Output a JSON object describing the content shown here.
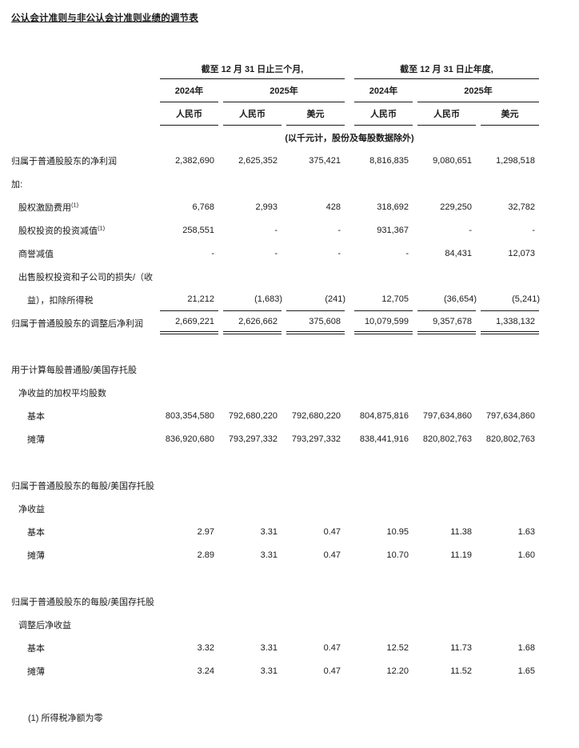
{
  "page": {
    "title": "公认会计准则与非公认会计准则业绩的调节表",
    "background": "#ffffff",
    "text_color": "#1a1a1a",
    "rule_color": "#1a1a1a"
  },
  "table": {
    "groups": [
      {
        "period": "截至 12 月 31 日止三个月,",
        "years": [
          "2024年",
          "2025年"
        ]
      },
      {
        "period": "截至 12 月 31 日止年度,",
        "years": [
          "2024年",
          "2025年"
        ]
      }
    ],
    "currencies": [
      "人民币",
      "人民币",
      "美元",
      "人民币",
      "人民币",
      "美元"
    ],
    "unit_note": "(以千元计，股份及每股数据除外)",
    "rows": [
      {
        "label": "归属于普通股股东的净利润",
        "indent": 0,
        "values": [
          "2,382,690",
          "2,625,352",
          "375,421",
          "8,816,835",
          "9,080,651",
          "1,298,518"
        ]
      },
      {
        "label": "加:",
        "indent": 0
      },
      {
        "label": "股权激励费用",
        "sup": "(1)",
        "indent": 1,
        "values": [
          "6,768",
          "2,993",
          "428",
          "318,692",
          "229,250",
          "32,782"
        ]
      },
      {
        "label": "股权投资的投资减值",
        "sup": "(1)",
        "indent": 1,
        "values": [
          "258,551",
          "-",
          "-",
          "931,367",
          "-",
          "-"
        ]
      },
      {
        "label": "商誉减值",
        "indent": 1,
        "values": [
          "-",
          "-",
          "-",
          "-",
          "84,431",
          "12,073"
        ]
      },
      {
        "label": "出售股权投资和子公司的损失/（收",
        "indent": 1
      },
      {
        "label": "益），扣除所得税",
        "indent": 2,
        "rule": "single",
        "values": [
          "21,212",
          "(1,683)",
          "(241)",
          "12,705",
          "(36,654)",
          "(5,241)"
        ]
      },
      {
        "label": "归属于普通股股东的调整后净利润",
        "indent": 0,
        "rule": "double",
        "values": [
          "2,669,221",
          "2,626,662",
          "375,608",
          "10,079,599",
          "9,357,678",
          "1,338,132"
        ]
      },
      {
        "type": "spacer"
      },
      {
        "label": "用于计算每股普通股/美国存托股",
        "indent": 0
      },
      {
        "label": "净收益的加权平均股数",
        "indent": 1
      },
      {
        "label": "基本",
        "indent": 2,
        "values": [
          "803,354,580",
          "792,680,220",
          "792,680,220",
          "804,875,816",
          "797,634,860",
          "797,634,860"
        ]
      },
      {
        "label": "摊薄",
        "indent": 2,
        "values": [
          "836,920,680",
          "793,297,332",
          "793,297,332",
          "838,441,916",
          "820,802,763",
          "820,802,763"
        ]
      },
      {
        "type": "spacer"
      },
      {
        "label": "归属于普通股股东的每股/美国存托股",
        "indent": 0
      },
      {
        "label": "净收益",
        "indent": 1
      },
      {
        "label": "基本",
        "indent": 2,
        "values": [
          "2.97",
          "3.31",
          "0.47",
          "10.95",
          "11.38",
          "1.63"
        ]
      },
      {
        "label": "摊薄",
        "indent": 2,
        "values": [
          "2.89",
          "3.31",
          "0.47",
          "10.70",
          "11.19",
          "1.60"
        ]
      },
      {
        "type": "spacer"
      },
      {
        "label": "归属于普通股股东的每股/美国存托股",
        "indent": 0
      },
      {
        "label": "调整后净收益",
        "indent": 1
      },
      {
        "label": "基本",
        "indent": 2,
        "values": [
          "3.32",
          "3.31",
          "0.47",
          "12.52",
          "11.73",
          "1.68"
        ]
      },
      {
        "label": "摊薄",
        "indent": 2,
        "values": [
          "3.24",
          "3.31",
          "0.47",
          "12.20",
          "11.52",
          "1.65"
        ]
      }
    ],
    "footnote": "(1) 所得税净额为零"
  }
}
